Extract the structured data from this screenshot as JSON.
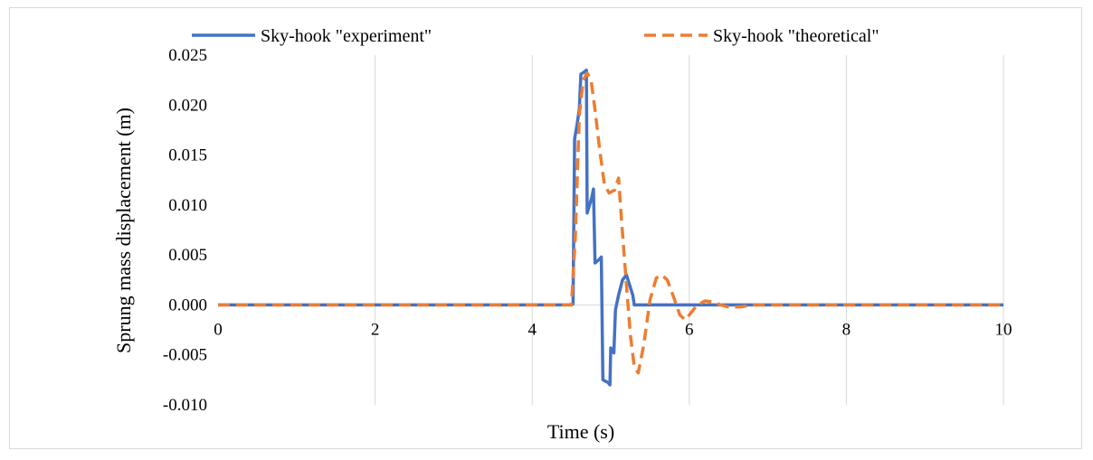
{
  "chart_data": {
    "type": "line",
    "title": "",
    "xlabel": "Time (s)",
    "ylabel": "Sprung mass displacement (m)",
    "xlim": [
      0,
      10
    ],
    "ylim": [
      -0.01,
      0.025
    ],
    "xticks": [
      0,
      2,
      4,
      6,
      8,
      10
    ],
    "xtick_labels": [
      "0",
      "2",
      "4",
      "6",
      "8",
      "10"
    ],
    "yticks": [
      -0.01,
      -0.005,
      0,
      0.005,
      0.01,
      0.015,
      0.02,
      0.025
    ],
    "ytick_labels": [
      "-0.010",
      "-0.005",
      "0.000",
      "0.005",
      "0.010",
      "0.015",
      "0.020",
      "0.025"
    ],
    "grid": "vertical",
    "legend_position": "top",
    "series": [
      {
        "name": "Sky-hook \"experiment\"",
        "color": "#4472c4",
        "dash": "solid",
        "points": [
          [
            0,
            0
          ],
          [
            4.5,
            0
          ],
          [
            4.52,
            0.0001
          ],
          [
            4.54,
            0.0166
          ],
          [
            4.57,
            0.018
          ],
          [
            4.6,
            0.0196
          ],
          [
            4.62,
            0.0231
          ],
          [
            4.66,
            0.0233
          ],
          [
            4.69,
            0.0235
          ],
          [
            4.7,
            0.0092
          ],
          [
            4.73,
            0.01
          ],
          [
            4.76,
            0.0108
          ],
          [
            4.78,
            0.0116
          ],
          [
            4.8,
            0.0042
          ],
          [
            4.83,
            0.0044
          ],
          [
            4.86,
            0.0046
          ],
          [
            4.88,
            0.0048
          ],
          [
            4.9,
            -0.0075
          ],
          [
            4.95,
            -0.0077
          ],
          [
            4.97,
            -0.0078
          ],
          [
            4.99,
            -0.008
          ],
          [
            5.0,
            -0.0043
          ],
          [
            5.04,
            -0.0048
          ],
          [
            5.06,
            -0.0005
          ],
          [
            5.1,
            0.001
          ],
          [
            5.15,
            0.0025
          ],
          [
            5.2,
            0.003
          ],
          [
            5.24,
            0.002
          ],
          [
            5.28,
            0.001
          ],
          [
            5.3,
            0
          ],
          [
            10,
            0
          ]
        ]
      },
      {
        "name": "Sky-hook \"theoretical\"",
        "color": "#ed7d31",
        "dash": "dashed",
        "points": [
          [
            0,
            0
          ],
          [
            4.5,
            0
          ],
          [
            4.55,
            0.007
          ],
          [
            4.6,
            0.019
          ],
          [
            4.65,
            0.0225
          ],
          [
            4.7,
            0.0232
          ],
          [
            4.75,
            0.0225
          ],
          [
            4.8,
            0.0195
          ],
          [
            4.86,
            0.0155
          ],
          [
            4.92,
            0.012
          ],
          [
            4.98,
            0.0112
          ],
          [
            5.05,
            0.0115
          ],
          [
            5.1,
            0.0127
          ],
          [
            5.14,
            0.0082
          ],
          [
            5.2,
            0.002
          ],
          [
            5.25,
            -0.003
          ],
          [
            5.3,
            -0.0062
          ],
          [
            5.35,
            -0.0068
          ],
          [
            5.42,
            -0.004
          ],
          [
            5.5,
            0.0005
          ],
          [
            5.58,
            0.0027
          ],
          [
            5.65,
            0.003
          ],
          [
            5.72,
            0.0025
          ],
          [
            5.8,
            0.0008
          ],
          [
            5.88,
            -0.001
          ],
          [
            5.95,
            -0.0015
          ],
          [
            6.02,
            -0.0008
          ],
          [
            6.1,
            0.0
          ],
          [
            6.2,
            0.0004
          ],
          [
            6.3,
            0.0003
          ],
          [
            6.4,
            0.0
          ],
          [
            6.5,
            -0.0002
          ],
          [
            6.65,
            -0.0002
          ],
          [
            6.8,
            0.0
          ],
          [
            7.0,
            0.0
          ],
          [
            10,
            0
          ]
        ]
      }
    ]
  }
}
